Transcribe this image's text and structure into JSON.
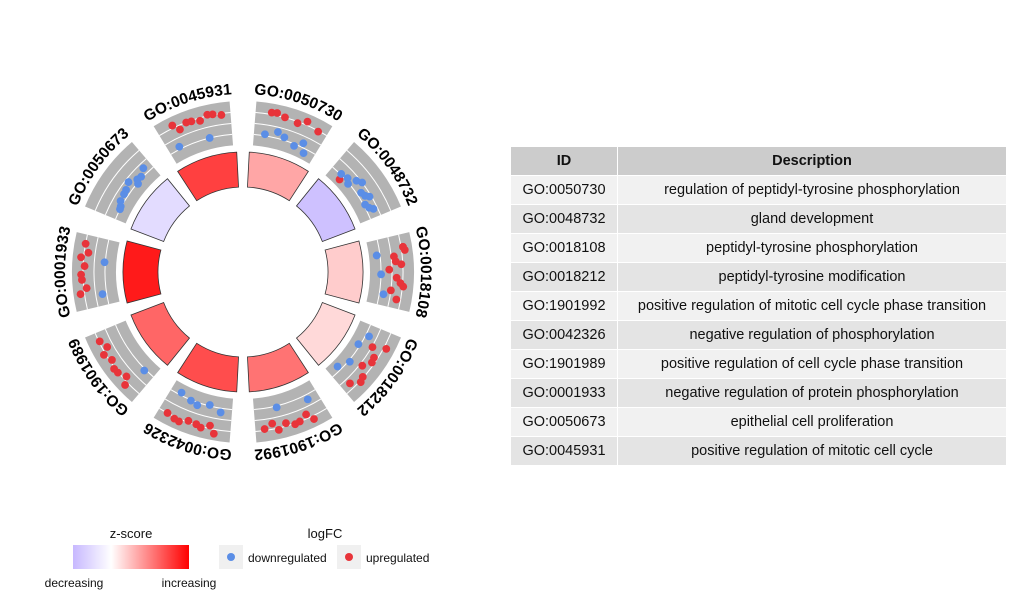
{
  "chart_data": {
    "type": "circular",
    "terms": [
      {
        "id": "GO:0050730",
        "description": "regulation of peptidyl-tyrosine phosphorylation",
        "zscore": 0.35,
        "genes": [
          [
            0.88,
            1
          ],
          [
            0.93,
            1
          ],
          [
            0.83,
            1
          ],
          [
            0.8,
            1
          ],
          [
            0.78,
            1
          ],
          [
            0.9,
            1
          ],
          [
            0.3,
            -1
          ],
          [
            0.26,
            -1
          ],
          [
            0.22,
            -1
          ],
          [
            0.12,
            -1
          ],
          [
            0.36,
            -1
          ],
          [
            0.04,
            -1
          ]
        ]
      },
      {
        "id": "GO:0048732",
        "description": "gland development",
        "zscore": -0.35,
        "genes": [
          [
            0.05,
            1
          ],
          [
            0.45,
            -1
          ],
          [
            0.4,
            -1
          ],
          [
            0.38,
            -1
          ],
          [
            0.3,
            -1
          ],
          [
            0.25,
            -1
          ],
          [
            0.22,
            -1
          ],
          [
            0.5,
            -1
          ],
          [
            0.2,
            -1
          ],
          [
            0.35,
            -1
          ],
          [
            0.15,
            -1
          ],
          [
            0.28,
            -1
          ]
        ]
      },
      {
        "id": "GO:0018108",
        "description": "peptidyl-tyrosine phosphorylation",
        "zscore": 0.2,
        "genes": [
          [
            0.92,
            1
          ],
          [
            0.85,
            1
          ],
          [
            0.78,
            1
          ],
          [
            0.7,
            1
          ],
          [
            0.64,
            1
          ],
          [
            0.58,
            1
          ],
          [
            0.5,
            1
          ],
          [
            0.42,
            1
          ],
          [
            0.88,
            1
          ],
          [
            0.76,
            1
          ],
          [
            0.62,
            1
          ],
          [
            0.3,
            -1
          ],
          [
            0.18,
            -1
          ],
          [
            0.08,
            -1
          ]
        ]
      },
      {
        "id": "GO:0018212",
        "description": "peptidyl-tyrosine modification",
        "zscore": 0.15,
        "genes": [
          [
            0.9,
            1
          ],
          [
            0.8,
            1
          ],
          [
            0.72,
            1
          ],
          [
            0.66,
            1
          ],
          [
            0.58,
            1
          ],
          [
            0.52,
            1
          ],
          [
            0.86,
            1
          ],
          [
            0.75,
            1
          ],
          [
            0.28,
            -1
          ],
          [
            0.22,
            -1
          ],
          [
            0.12,
            -1
          ],
          [
            0.05,
            -1
          ]
        ]
      },
      {
        "id": "GO:1901992",
        "description": "positive regulation of mitotic cell cycle phase transition",
        "zscore": 0.55,
        "genes": [
          [
            0.92,
            1
          ],
          [
            0.88,
            1
          ],
          [
            0.82,
            1
          ],
          [
            0.78,
            1
          ],
          [
            0.74,
            1
          ],
          [
            0.7,
            1
          ],
          [
            0.66,
            1
          ],
          [
            0.85,
            1
          ],
          [
            0.32,
            -1
          ],
          [
            0.22,
            -1
          ]
        ]
      },
      {
        "id": "GO:0042326",
        "description": "negative regulation of phosphorylation",
        "zscore": 0.7,
        "genes": [
          [
            0.95,
            1
          ],
          [
            0.9,
            1
          ],
          [
            0.86,
            1
          ],
          [
            0.82,
            1
          ],
          [
            0.78,
            1
          ],
          [
            0.74,
            1
          ],
          [
            0.88,
            1
          ],
          [
            0.8,
            1
          ],
          [
            0.3,
            -1
          ],
          [
            0.2,
            -1
          ],
          [
            0.15,
            -1
          ],
          [
            0.1,
            -1
          ],
          [
            0.26,
            -1
          ]
        ]
      },
      {
        "id": "GO:1901989",
        "description": "positive regulation of cell cycle phase transition",
        "zscore": 0.6,
        "genes": [
          [
            0.92,
            1
          ],
          [
            0.88,
            1
          ],
          [
            0.84,
            1
          ],
          [
            0.8,
            1
          ],
          [
            0.76,
            1
          ],
          [
            0.72,
            1
          ],
          [
            0.68,
            1
          ],
          [
            0.86,
            1
          ],
          [
            0.22,
            -1
          ]
        ]
      },
      {
        "id": "GO:0001933",
        "description": "negative regulation of protein phosphorylation",
        "zscore": 0.9,
        "genes": [
          [
            0.94,
            1
          ],
          [
            0.9,
            1
          ],
          [
            0.86,
            1
          ],
          [
            0.82,
            1
          ],
          [
            0.78,
            1
          ],
          [
            0.74,
            1
          ],
          [
            0.7,
            1
          ],
          [
            0.88,
            1
          ],
          [
            0.3,
            -1
          ],
          [
            0.2,
            -1
          ]
        ]
      },
      {
        "id": "GO:0050673",
        "description": "epithelial cell proliferation",
        "zscore": -0.2,
        "genes": [
          [
            0.2,
            -1
          ],
          [
            0.25,
            -1
          ],
          [
            0.3,
            -1
          ],
          [
            0.35,
            -1
          ],
          [
            0.4,
            -1
          ],
          [
            0.28,
            -1
          ],
          [
            0.22,
            -1
          ],
          [
            0.32,
            -1
          ],
          [
            0.18,
            -1
          ],
          [
            0.15,
            -1
          ]
        ]
      },
      {
        "id": "GO:0045931",
        "description": "positive regulation of mitotic cell cycle",
        "zscore": 0.75,
        "genes": [
          [
            0.9,
            1
          ],
          [
            0.86,
            1
          ],
          [
            0.82,
            1
          ],
          [
            0.78,
            1
          ],
          [
            0.74,
            1
          ],
          [
            0.7,
            1
          ],
          [
            0.84,
            1
          ],
          [
            0.8,
            1
          ],
          [
            0.25,
            -1
          ],
          [
            0.18,
            -1
          ]
        ]
      }
    ],
    "table": {
      "columns": [
        "ID",
        "Description"
      ]
    },
    "legend_zscore": {
      "title": "z-score",
      "low": "decreasing",
      "high": "increasing"
    },
    "legend_logfc": {
      "title": "logFC",
      "down": "downregulated",
      "up": "upregulated"
    },
    "colors": {
      "up": "#e8343a",
      "down": "#5b8ee6",
      "low": "#c7b8ff",
      "mid": "#ffffff",
      "high": "#ff0000",
      "track": "#b3b3b3",
      "header": "#cccccc"
    }
  }
}
